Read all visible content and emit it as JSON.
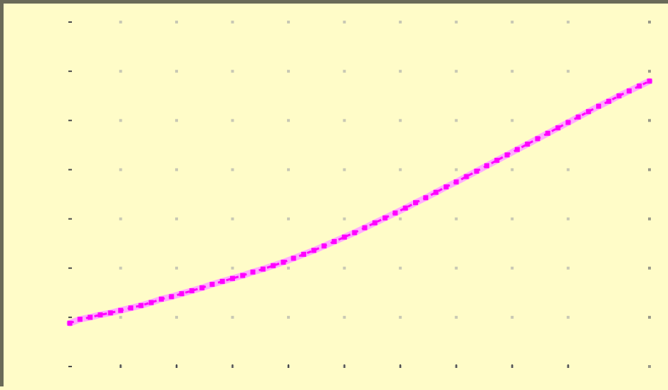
{
  "chart_data": {
    "type": "line",
    "title": "",
    "xlabel": "",
    "ylabel": "",
    "grid": "dotted",
    "legend": "none",
    "colors": {
      "background": "#fffcc8",
      "line": "#ff00ff",
      "line_halo": "#ffaaff",
      "frame": "#6a6a58"
    },
    "xlim": [
      0,
      57
    ],
    "ylim": [
      0,
      7
    ],
    "yticks": [
      0,
      1,
      2,
      3,
      4,
      5,
      6,
      7
    ],
    "ytick_labels": [
      "",
      "",
      "",
      "",
      "",
      "",
      "",
      ""
    ],
    "xticks": [
      5,
      10.5,
      16,
      21.5,
      27,
      32.5,
      38,
      43.5,
      49
    ],
    "xtick_labels": [
      "",
      "",
      "",
      "",
      "",
      "",
      "",
      "",
      ""
    ],
    "series": [
      {
        "values_x": [
          0,
          1,
          2,
          3,
          4,
          5,
          6,
          7,
          8,
          9,
          10,
          11,
          12,
          13,
          14,
          15,
          16,
          17,
          18,
          19,
          20,
          21,
          22,
          23,
          24,
          25,
          26,
          27,
          28,
          29,
          30,
          31,
          32,
          33,
          34,
          35,
          36,
          37,
          38,
          39,
          40,
          41,
          42,
          43,
          44,
          45,
          46,
          47,
          48,
          49,
          50,
          51,
          52,
          53,
          54,
          55,
          56,
          57
        ],
        "values_y": [
          0.88,
          0.96,
          1.0,
          1.05,
          1.09,
          1.14,
          1.19,
          1.24,
          1.3,
          1.37,
          1.42,
          1.48,
          1.54,
          1.6,
          1.67,
          1.73,
          1.79,
          1.85,
          1.92,
          1.98,
          2.05,
          2.12,
          2.2,
          2.28,
          2.36,
          2.45,
          2.54,
          2.63,
          2.72,
          2.82,
          2.92,
          3.02,
          3.12,
          3.22,
          3.33,
          3.43,
          3.54,
          3.65,
          3.75,
          3.86,
          3.97,
          4.08,
          4.19,
          4.3,
          4.41,
          4.52,
          4.63,
          4.74,
          4.85,
          4.96,
          5.07,
          5.18,
          5.29,
          5.39,
          5.5,
          5.6,
          5.7,
          5.8
        ]
      }
    ]
  }
}
